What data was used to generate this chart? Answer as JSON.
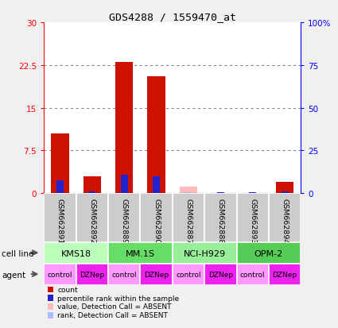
{
  "title": "GDS4288 / 1559470_at",
  "samples": [
    "GSM662891",
    "GSM662892",
    "GSM662889",
    "GSM662890",
    "GSM662887",
    "GSM662888",
    "GSM662893",
    "GSM662894"
  ],
  "cell_lines": [
    {
      "label": "KMS18",
      "start": 0,
      "end": 2,
      "color": "#bbffbb"
    },
    {
      "label": "MM.1S",
      "start": 2,
      "end": 4,
      "color": "#66dd66"
    },
    {
      "label": "NCI-H929",
      "start": 4,
      "end": 6,
      "color": "#99ee99"
    },
    {
      "label": "OPM-2",
      "start": 6,
      "end": 8,
      "color": "#55cc55"
    }
  ],
  "agents": [
    "control",
    "DZNep",
    "control",
    "DZNep",
    "control",
    "DZNep",
    "control",
    "DZNep"
  ],
  "agent_colors_control": "#ff99ff",
  "agent_colors_dznep": "#ee22ee",
  "count_values": [
    10.5,
    3.0,
    23.0,
    20.5,
    0.0,
    0.0,
    0.0,
    2.0
  ],
  "count_absent": [
    false,
    false,
    false,
    false,
    true,
    false,
    false,
    false
  ],
  "rank_values": [
    7.5,
    1.2,
    10.8,
    10.0,
    0.7,
    0.5,
    0.6,
    1.2
  ],
  "rank_absent": [
    false,
    false,
    false,
    false,
    true,
    false,
    false,
    false
  ],
  "absent_count_val": [
    0.0,
    0.0,
    0.0,
    0.0,
    1.2,
    0.0,
    0.0,
    0.0
  ],
  "absent_rank_val": [
    0.0,
    0.0,
    0.0,
    0.0,
    0.7,
    0.0,
    0.0,
    0.0
  ],
  "ylim_left": [
    0,
    30
  ],
  "ylim_right": [
    0,
    100
  ],
  "yticks_left": [
    0,
    7.5,
    15,
    22.5,
    30
  ],
  "yticks_right": [
    0,
    25,
    50,
    75,
    100
  ],
  "ytick_labels_left": [
    "0",
    "7.5",
    "15",
    "22.5",
    "30"
  ],
  "ytick_labels_right": [
    "0",
    "25",
    "50",
    "75",
    "100%"
  ],
  "count_color": "#cc1100",
  "count_absent_color": "#ffbbbb",
  "rank_color": "#2222cc",
  "rank_absent_color": "#aabbff",
  "gsm_bg": "#cccccc",
  "bar_bg": "#ffffff",
  "fig_bg": "#f0f0f0"
}
